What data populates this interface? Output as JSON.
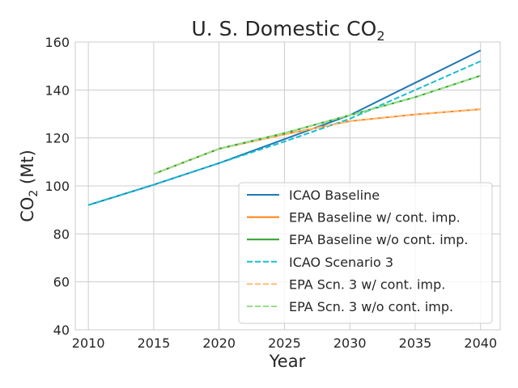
{
  "chart_data": {
    "type": "line",
    "title": {
      "main": "U. S. Domestic CO",
      "sub": "2"
    },
    "xlabel": "Year",
    "ylabel": {
      "main": "CO",
      "sub": "2",
      "rest": " (Mt)"
    },
    "xlim": [
      2009,
      2041.5
    ],
    "ylim": [
      40,
      160
    ],
    "xticks": [
      2010,
      2015,
      2020,
      2025,
      2030,
      2035,
      2040
    ],
    "yticks": [
      40,
      60,
      80,
      100,
      120,
      140,
      160
    ],
    "grid": true,
    "legend_position": "lower-right",
    "series": [
      {
        "name": "ICAO Baseline",
        "color": "#1f77b4",
        "dash": "solid",
        "width": 2,
        "points": [
          [
            2010,
            92
          ],
          [
            2015,
            100.5
          ],
          [
            2020,
            109.5
          ],
          [
            2025,
            119.5
          ],
          [
            2030,
            129.5
          ],
          [
            2035,
            143
          ],
          [
            2040,
            156.5
          ]
        ]
      },
      {
        "name": "EPA Baseline w/ cont. imp.",
        "color": "#ff7f0e",
        "dash": "solid",
        "width": 2,
        "points": [
          [
            2015,
            105
          ],
          [
            2020,
            115.5
          ],
          [
            2025,
            121.5
          ],
          [
            2030,
            127
          ],
          [
            2035,
            129.8
          ],
          [
            2040,
            132
          ]
        ]
      },
      {
        "name": "EPA Baseline w/o cont. imp.",
        "color": "#2ca02c",
        "dash": "solid",
        "width": 2,
        "points": [
          [
            2015,
            105
          ],
          [
            2020,
            115.5
          ],
          [
            2025,
            122
          ],
          [
            2030,
            129.5
          ],
          [
            2035,
            137
          ],
          [
            2040,
            146
          ]
        ]
      },
      {
        "name": "ICAO Scenario 3",
        "color": "#17becf",
        "dash": "dashed",
        "width": 2,
        "points": [
          [
            2010,
            92
          ],
          [
            2015,
            100.5
          ],
          [
            2020,
            109.5
          ],
          [
            2025,
            118.5
          ],
          [
            2030,
            128
          ],
          [
            2035,
            140
          ],
          [
            2040,
            152
          ]
        ]
      },
      {
        "name": "EPA Scn. 3 w/ cont. imp.",
        "color": "#ffbb78",
        "dash": "dashed",
        "width": 2,
        "points": [
          [
            2015,
            105
          ],
          [
            2020,
            115.5
          ],
          [
            2025,
            121.5
          ],
          [
            2030,
            127
          ],
          [
            2035,
            129.8
          ],
          [
            2040,
            132
          ]
        ]
      },
      {
        "name": "EPA Scn. 3 w/o cont. imp.",
        "color": "#98df8a",
        "dash": "dashed",
        "width": 2,
        "points": [
          [
            2015,
            105
          ],
          [
            2020,
            115.5
          ],
          [
            2025,
            122
          ],
          [
            2030,
            129.5
          ],
          [
            2035,
            137
          ],
          [
            2040,
            146
          ]
        ]
      }
    ]
  }
}
